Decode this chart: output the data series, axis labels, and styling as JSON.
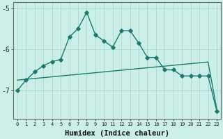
{
  "xlabel": "Humidex (Indice chaleur)",
  "x": [
    0,
    1,
    2,
    3,
    4,
    5,
    6,
    7,
    8,
    9,
    10,
    11,
    12,
    13,
    14,
    15,
    16,
    17,
    18,
    19,
    20,
    21,
    22,
    23
  ],
  "y_curve": [
    -7.0,
    -6.75,
    -6.55,
    -6.4,
    -6.3,
    -6.25,
    -5.7,
    -5.5,
    -5.1,
    -5.65,
    -5.8,
    -5.95,
    -5.55,
    -5.55,
    -5.85,
    -6.2,
    -6.2,
    -6.5,
    -6.5,
    -6.65,
    -6.65,
    -6.65,
    -6.65,
    -7.5
  ],
  "y_line": [
    -6.75,
    -6.73,
    -6.71,
    -6.69,
    -6.67,
    -6.65,
    -6.63,
    -6.61,
    -6.59,
    -6.57,
    -6.55,
    -6.53,
    -6.51,
    -6.49,
    -6.47,
    -6.45,
    -6.43,
    -6.41,
    -6.39,
    -6.37,
    -6.35,
    -6.33,
    -6.31,
    -7.45
  ],
  "line_color": "#1a7a6e",
  "bg_color": "#cceee8",
  "grid_color": "#aad8d2",
  "ylim_min": -7.7,
  "ylim_max": -4.85,
  "yticks": [
    -7,
    -6,
    -5
  ],
  "marker": "D",
  "markersize": 2.8,
  "linewidth": 1.0
}
